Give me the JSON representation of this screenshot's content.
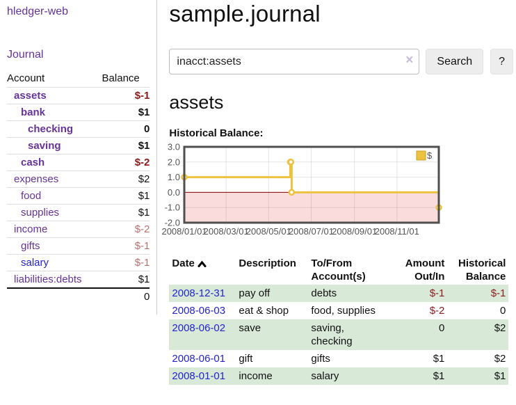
{
  "colors": {
    "accent_purple": "#663399",
    "link_blue": "#2323cc",
    "negative": "#8c1b1b",
    "negative_soft": "#b5706e",
    "row_stripe_green": "#d9e9d8",
    "series_yellow": "#edc240",
    "zero_line": "#8b0000",
    "negative_region": "#fbdcdc",
    "chart_border": "#4f4f4f"
  },
  "sidebar": {
    "brand": "hledger-web",
    "journal_link": "Journal",
    "accounts": {
      "header_account": "Account",
      "header_balance": "Balance",
      "rows": [
        {
          "name": "assets",
          "balance": "$-1",
          "level": 1,
          "bold": true,
          "tone": "negative",
          "link": "purple"
        },
        {
          "name": "bank",
          "balance": "$1",
          "level": 2,
          "bold": true,
          "tone": "normal",
          "link": "purple"
        },
        {
          "name": "checking",
          "balance": "0",
          "level": 3,
          "bold": true,
          "tone": "normal",
          "link": "purple"
        },
        {
          "name": "saving",
          "balance": "$1",
          "level": 3,
          "bold": true,
          "tone": "normal",
          "link": "purple"
        },
        {
          "name": "cash",
          "balance": "$-2",
          "level": 2,
          "bold": true,
          "tone": "negative",
          "link": "purple"
        },
        {
          "name": "expenses",
          "balance": "$2",
          "level": 1,
          "bold": false,
          "tone": "normal",
          "link": "purple"
        },
        {
          "name": "food",
          "balance": "$1",
          "level": 2,
          "bold": false,
          "tone": "normal",
          "link": "purple"
        },
        {
          "name": "supplies",
          "balance": "$1",
          "level": 2,
          "bold": false,
          "tone": "normal",
          "link": "purple"
        },
        {
          "name": "income",
          "balance": "$-2",
          "level": 1,
          "bold": false,
          "tone": "negative-soft",
          "link": "purple"
        },
        {
          "name": "gifts",
          "balance": "$-1",
          "level": 2,
          "bold": false,
          "tone": "negative-soft",
          "link": "purple"
        },
        {
          "name": "salary",
          "balance": "$-1",
          "level": 2,
          "bold": false,
          "tone": "negative-soft",
          "link": "blue"
        },
        {
          "name": "liabilities:debts",
          "balance": "$1",
          "level": 1,
          "bold": false,
          "tone": "normal",
          "link": "purple"
        }
      ],
      "total": "0"
    }
  },
  "main": {
    "title": "sample.journal",
    "search": {
      "value": "inacct:assets",
      "clear_icon": "×",
      "button_label": "Search",
      "help_label": "?"
    },
    "account_heading": "assets",
    "chart_heading": "Historical Balance:"
  },
  "chart_data": {
    "type": "line",
    "step": true,
    "title": "Historical Balance",
    "series": [
      {
        "name": "$",
        "color": "#edc240",
        "points": [
          [
            "2008-01-01",
            1
          ],
          [
            "2008-06-01",
            2
          ],
          [
            "2008-06-02",
            2
          ],
          [
            "2008-06-03",
            0
          ],
          [
            "2008-12-31",
            -1
          ]
        ]
      }
    ],
    "x_range": [
      "2008-01-01",
      "2008-12-31"
    ],
    "x_tick_dates": [
      "2008-01-01",
      "2008-03-01",
      "2008-05-01",
      "2008-07-01",
      "2008-09-01",
      "2008-11-01"
    ],
    "x_tick_labels": [
      "2008/01/01",
      "2008/03/01",
      "2008/05/01",
      "2008/07/01",
      "2008/09/01",
      "2008/11/01"
    ],
    "y_ticks": [
      "3.0",
      "2.0",
      "1.0",
      "0.0",
      "-1.0",
      "-2.0"
    ],
    "ylim": [
      -2,
      3
    ],
    "grid": true,
    "legend": {
      "label": "$",
      "position": "top-right"
    },
    "negative_region": true
  },
  "register": {
    "headers": [
      {
        "label": "Date",
        "align": "left",
        "sort": "asc"
      },
      {
        "label": "Description",
        "align": "left"
      },
      {
        "label": "To/From Account(s)",
        "align": "left"
      },
      {
        "label": "Amount Out/In",
        "align": "right"
      },
      {
        "label": "Historical Balance",
        "align": "right"
      }
    ],
    "rows": [
      {
        "date": "2008-12-31",
        "description": "pay off",
        "accounts": "debts",
        "amount": "$-1",
        "amount_tone": "negative",
        "balance": "$-1",
        "balance_tone": "negative"
      },
      {
        "date": "2008-06-03",
        "description": "eat & shop",
        "accounts": "food, supplies",
        "amount": "$-2",
        "amount_tone": "negative",
        "balance": "0",
        "balance_tone": "normal"
      },
      {
        "date": "2008-06-02",
        "description": "save",
        "accounts": "saving, checking",
        "amount": "0",
        "amount_tone": "normal",
        "balance": "$2",
        "balance_tone": "normal"
      },
      {
        "date": "2008-06-01",
        "description": "gift",
        "accounts": "gifts",
        "amount": "$1",
        "amount_tone": "normal",
        "balance": "$2",
        "balance_tone": "normal"
      },
      {
        "date": "2008-01-01",
        "description": "income",
        "accounts": "salary",
        "amount": "$1",
        "amount_tone": "normal",
        "balance": "$1",
        "balance_tone": "normal"
      }
    ]
  }
}
